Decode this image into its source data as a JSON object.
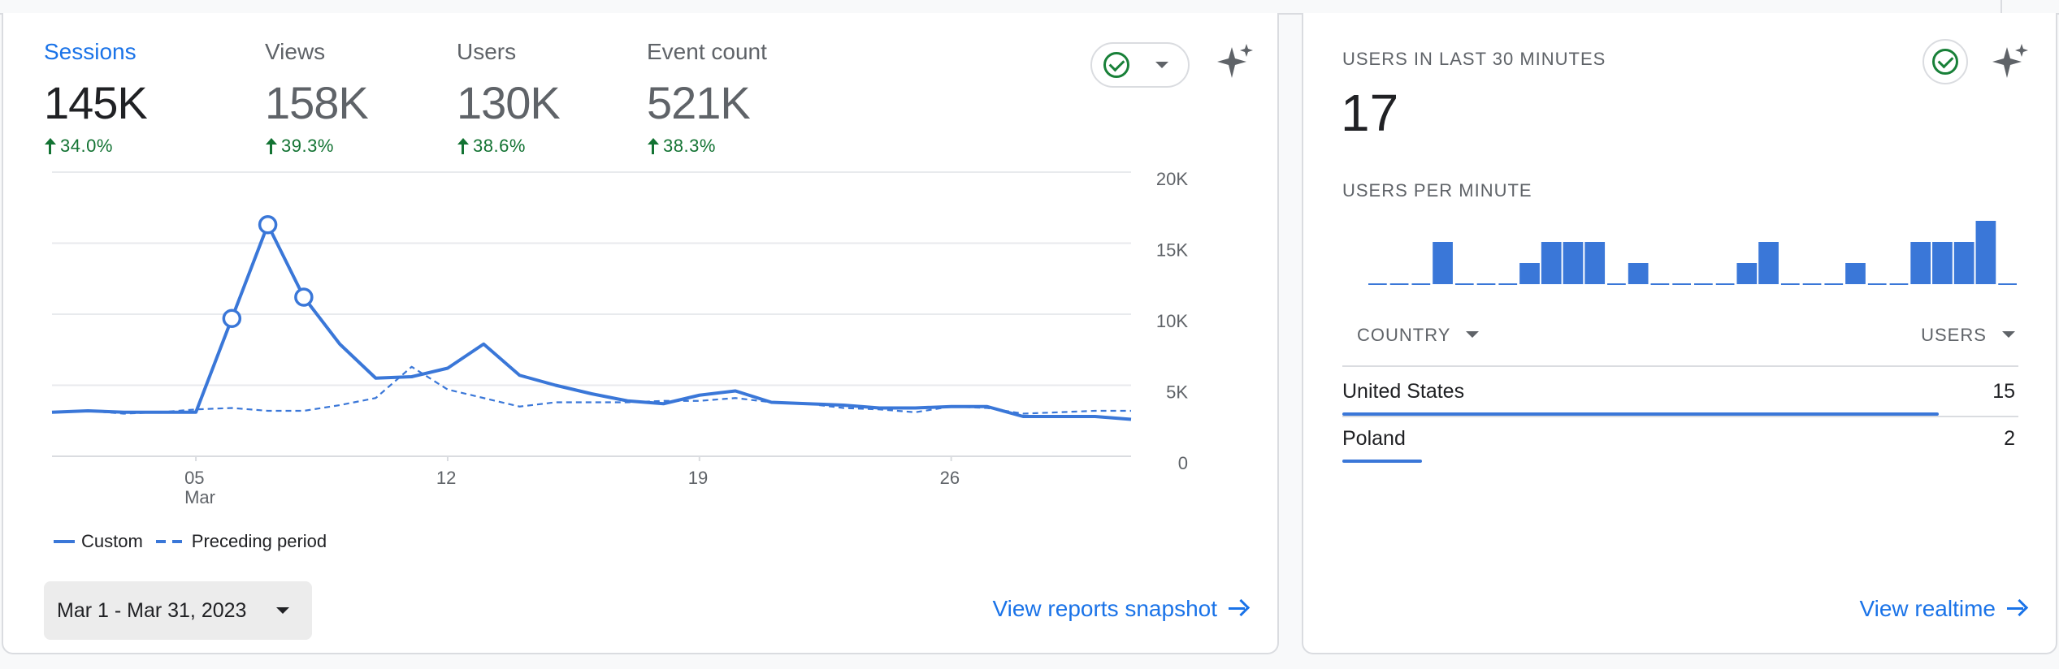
{
  "metrics": [
    {
      "label": "Sessions",
      "value": "145K",
      "change": "34.0%",
      "active": true
    },
    {
      "label": "Views",
      "value": "158K",
      "change": "39.3%",
      "active": false
    },
    {
      "label": "Users",
      "value": "130K",
      "change": "38.6%",
      "active": false
    },
    {
      "label": "Event count",
      "value": "521K",
      "change": "38.3%",
      "active": false
    }
  ],
  "icons": {
    "status": "check-circle-icon",
    "status_dropdown": "caret-down-icon",
    "insights": "sparkle-icon",
    "link_arrow": "arrow-right-icon"
  },
  "colors": {
    "accent": "#1a73e8",
    "series": "#3a77d8",
    "positive": "#137333",
    "status_ok": "#188038"
  },
  "chart_data": {
    "type": "line",
    "x_tick_labels": [
      "05",
      "12",
      "19",
      "26"
    ],
    "x_tick_sublabel": "Mar",
    "y_tick_labels": [
      "20K",
      "15K",
      "10K",
      "5K",
      "0"
    ],
    "ylim": [
      0,
      20000
    ],
    "y_axis_side": "right",
    "grid": true,
    "legend_position": "bottom-left",
    "x": [
      1,
      2,
      3,
      4,
      5,
      6,
      7,
      8,
      9,
      10,
      11,
      12,
      13,
      14,
      15,
      16,
      17,
      18,
      19,
      20,
      21,
      22,
      23,
      24,
      25,
      26,
      27,
      28,
      29,
      30,
      31
    ],
    "series": [
      {
        "name": "Custom",
        "style": "solid",
        "values": [
          3100,
          3200,
          3100,
          3100,
          3100,
          9700,
          16300,
          11200,
          7900,
          5500,
          5600,
          6200,
          7900,
          5700,
          5000,
          4400,
          3900,
          3700,
          4300,
          4600,
          3800,
          3700,
          3600,
          3400,
          3400,
          3500,
          3500,
          2800,
          2800,
          2800,
          2600
        ],
        "marked_points_x": [
          6,
          7,
          8
        ]
      },
      {
        "name": "Preceding period",
        "style": "dashed",
        "values": [
          3100,
          3200,
          3000,
          3100,
          3300,
          3400,
          3200,
          3200,
          3600,
          4100,
          6300,
          4700,
          4100,
          3500,
          3800,
          3800,
          3800,
          3900,
          3900,
          4100,
          3800,
          3700,
          3400,
          3300,
          3100,
          3500,
          3400,
          3000,
          3100,
          3200,
          3200
        ]
      }
    ]
  },
  "date_range": {
    "label": "Mar 1 - Mar 31, 2023"
  },
  "links": {
    "snapshot": "View reports snapshot",
    "realtime": "View realtime"
  },
  "realtime": {
    "title": "USERS IN LAST 30 MINUTES",
    "value": "17",
    "subtitle": "USERS PER MINUTE",
    "per_minute_chart": {
      "type": "bar",
      "values": [
        0,
        0,
        0,
        2,
        0,
        0,
        0,
        1,
        2,
        2,
        2,
        0,
        1,
        0,
        0,
        0,
        0,
        1,
        2,
        0,
        0,
        0,
        1,
        0,
        0,
        2,
        2,
        2,
        3,
        0
      ]
    },
    "table": {
      "columns": [
        "COUNTRY",
        "USERS"
      ],
      "rows": [
        {
          "country": "United States",
          "users": "15",
          "share": 0.882
        },
        {
          "country": "Poland",
          "users": "2",
          "share": 0.118
        }
      ]
    }
  }
}
